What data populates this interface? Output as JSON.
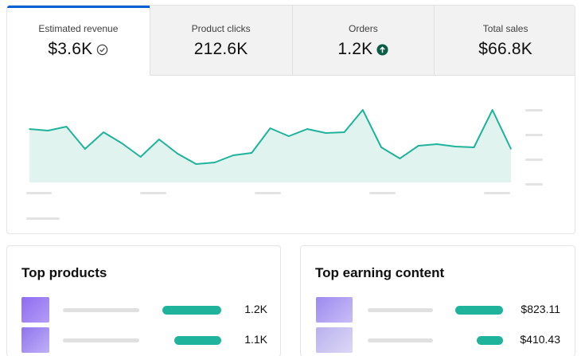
{
  "tabs": [
    {
      "label": "Estimated revenue",
      "value": "$3.6K",
      "icon": "check-circle-icon",
      "active": true
    },
    {
      "label": "Product clicks",
      "value": "212.6K",
      "icon": "",
      "active": false
    },
    {
      "label": "Orders",
      "value": "1.2K",
      "icon": "arrow-up-circle-icon",
      "active": false
    },
    {
      "label": "Total sales",
      "value": "$66.8K",
      "icon": "",
      "active": false
    }
  ],
  "chart_data": {
    "type": "area",
    "values": [
      155,
      157,
      152,
      180,
      159,
      173,
      190,
      168,
      186,
      199,
      197,
      188,
      185,
      154,
      164,
      155,
      160,
      159,
      131,
      178,
      192,
      176,
      174,
      177,
      178,
      131,
      180
    ],
    "color": "#1fb39c",
    "fill": "#e0f3ee",
    "grid": false
  },
  "top_products": {
    "title": "Top products",
    "items": [
      {
        "value": "1.2K",
        "share": 1.0,
        "thumb_from": "#8e6cf0",
        "thumb_to": "#b49cf6"
      },
      {
        "value": "1.1K",
        "share": 0.8,
        "thumb_from": "#8f74ee",
        "thumb_to": "#c0b0f5"
      }
    ]
  },
  "top_content": {
    "title": "Top earning content",
    "items": [
      {
        "value": "$823.11",
        "share": 1.0,
        "thumb_from": "#9d8aef",
        "thumb_to": "#c8bdf6"
      },
      {
        "value": "$410.43",
        "share": 0.55,
        "thumb_from": "#b9b0ee",
        "thumb_to": "#dcd8f6"
      }
    ]
  },
  "colors": {
    "accent": "#065fd4",
    "bar": "#1fb39c",
    "skeleton": "#e0e0e0"
  }
}
